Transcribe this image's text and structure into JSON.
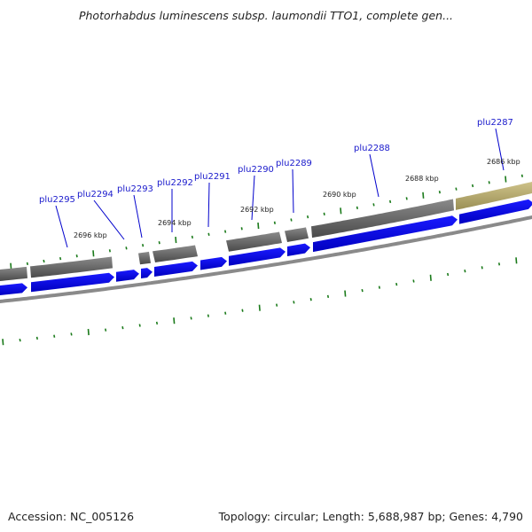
{
  "header": {
    "title": "Photorhabdus luminescens subsp. laumondii TTO1, complete gen..."
  },
  "footer": {
    "accession": "Accession: NC_005126",
    "summary": "Topology: circular; Length: 5,688,987 bp; Genes: 4,790"
  },
  "colors": {
    "gene_track": "#6e6e6e",
    "highlight_segment": "#b5aa70",
    "cds_arrow": "#0000ee",
    "backbone": "#8a8a8a",
    "tick": "#1a7a1a",
    "gene_label": "#1a1acc"
  },
  "coordinate_labels": [
    "2696 kbp",
    "2694 kbp",
    "2692 kbp",
    "2690 kbp",
    "2688 kbp",
    "2686 kbp"
  ],
  "gene_labels": [
    "plu2295",
    "plu2294",
    "plu2293",
    "plu2292",
    "plu2291",
    "plu2290",
    "plu2289",
    "plu2288",
    "plu2287"
  ]
}
